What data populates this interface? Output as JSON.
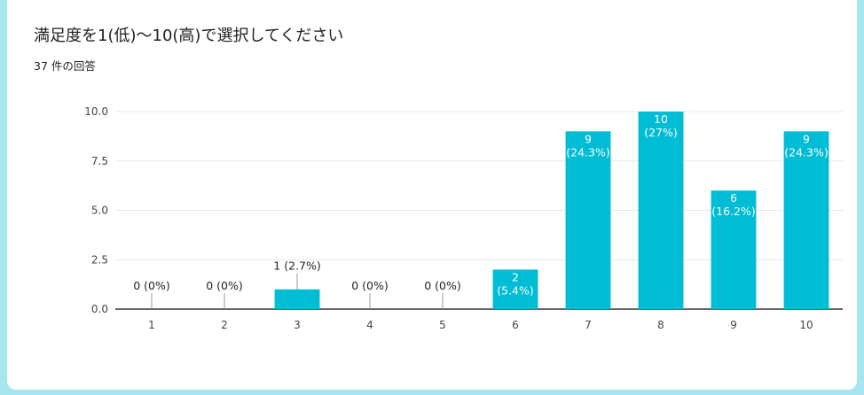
{
  "question": {
    "title": "満足度を1(低)〜10(高)で選択してください",
    "response_count": "37 件の回答"
  },
  "colors": {
    "bar": "#00bcd4",
    "gridline": "#e8e8e8",
    "axis": "#333333",
    "background": "#a8e6ef"
  },
  "chart_data": {
    "type": "bar",
    "categories": [
      "1",
      "2",
      "3",
      "4",
      "5",
      "6",
      "7",
      "8",
      "9",
      "10"
    ],
    "values": [
      0,
      0,
      1,
      0,
      0,
      2,
      9,
      10,
      6,
      9
    ],
    "data_labels": [
      "0 (0%)",
      "0 (0%)",
      "1 (2.7%)",
      "0 (0%)",
      "0 (0%)",
      "2 (5.4%)",
      "9 (24.3%)",
      "10 (27%)",
      "6 (16.2%)",
      "9 (24.3%)"
    ],
    "ylim": [
      0,
      10
    ],
    "yticks": [
      "0.0",
      "2.5",
      "5.0",
      "7.5",
      "10.0"
    ],
    "grid": true,
    "title": "",
    "xlabel": "",
    "ylabel": ""
  }
}
